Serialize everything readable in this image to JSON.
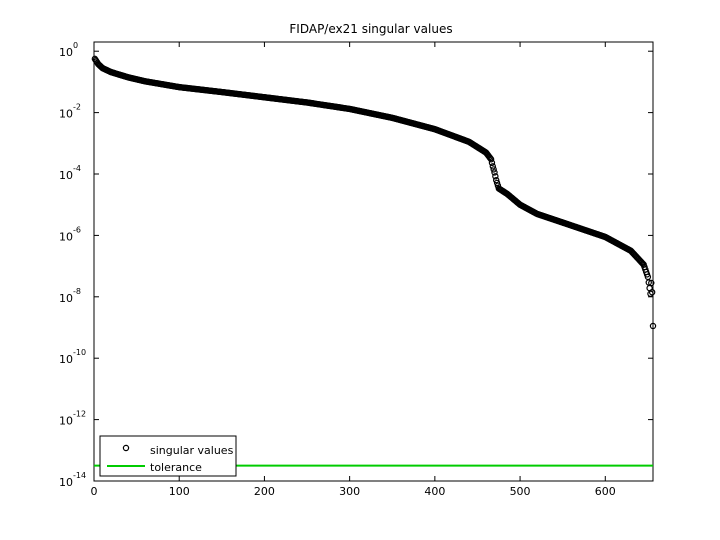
{
  "chart_data": {
    "type": "scatter",
    "title": "FIDAP/ex21 singular values",
    "xlabel": "",
    "ylabel": "",
    "xlim": [
      0,
      656
    ],
    "ylim_log10": [
      -14,
      0.3
    ],
    "yscale": "log",
    "grid": false,
    "legend_position": "bottom-left",
    "x_ticks": [
      0,
      100,
      200,
      300,
      400,
      500,
      600
    ],
    "x_tick_labels": [
      "0",
      "100",
      "200",
      "300",
      "400",
      "500",
      "600"
    ],
    "y_ticks_log10": [
      0,
      -2,
      -4,
      -6,
      -8,
      -10,
      -12,
      -14
    ],
    "y_tick_labels": [
      {
        "base": "10",
        "exp": "0"
      },
      {
        "base": "10",
        "exp": "-2"
      },
      {
        "base": "10",
        "exp": "-4"
      },
      {
        "base": "10",
        "exp": "-6"
      },
      {
        "base": "10",
        "exp": "-8"
      },
      {
        "base": "10",
        "exp": "-10"
      },
      {
        "base": "10",
        "exp": "-12"
      },
      {
        "base": "10",
        "exp": "-14"
      }
    ],
    "series": [
      {
        "name": "singular values",
        "marker": "circle",
        "color": "#000000",
        "curve_log10": [
          [
            1,
            -0.25
          ],
          [
            5,
            -0.42
          ],
          [
            10,
            -0.55
          ],
          [
            20,
            -0.68
          ],
          [
            40,
            -0.85
          ],
          [
            60,
            -0.98
          ],
          [
            100,
            -1.17
          ],
          [
            150,
            -1.33
          ],
          [
            200,
            -1.5
          ],
          [
            250,
            -1.67
          ],
          [
            300,
            -1.88
          ],
          [
            350,
            -2.17
          ],
          [
            400,
            -2.54
          ],
          [
            440,
            -2.95
          ],
          [
            460,
            -3.3
          ],
          [
            466,
            -3.52
          ],
          [
            468,
            -3.75
          ],
          [
            470,
            -3.95
          ],
          [
            472,
            -4.2
          ],
          [
            475,
            -4.47
          ],
          [
            485,
            -4.65
          ],
          [
            500,
            -5.0
          ],
          [
            520,
            -5.3
          ],
          [
            550,
            -5.58
          ],
          [
            600,
            -6.05
          ],
          [
            630,
            -6.5
          ],
          [
            645,
            -6.95
          ],
          [
            650,
            -7.35
          ],
          [
            653,
            -7.9
          ]
        ],
        "outlier_points_log10": [
          [
            654,
            -7.55
          ],
          [
            655,
            -7.85
          ],
          [
            656,
            -8.95
          ]
        ]
      },
      {
        "name": "tolerance",
        "marker": "line",
        "color": "#00cc00",
        "value_log10": -13.5
      }
    ]
  }
}
